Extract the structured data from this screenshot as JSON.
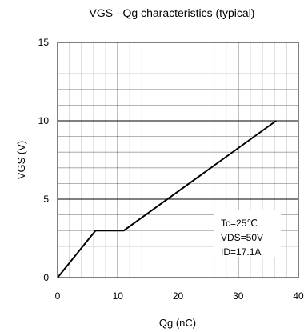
{
  "chart_data": {
    "type": "line",
    "title": "VGS - Qg characteristics (typical)",
    "xlabel": "Qg (nC)",
    "ylabel": "VGS (V)",
    "xlim": [
      0,
      40
    ],
    "ylim": [
      0,
      15
    ],
    "x_ticks": [
      0,
      10,
      20,
      30,
      40
    ],
    "y_ticks": [
      0,
      5,
      10,
      15
    ],
    "x_tick_labels": [
      "0",
      "10",
      "20",
      "30",
      "40"
    ],
    "y_tick_labels": [
      "0",
      "5",
      "10",
      "15"
    ],
    "grid": true,
    "series": [
      {
        "x": [
          0,
          6.3,
          11.0,
          36.3
        ],
        "y": [
          0,
          3.0,
          3.0,
          10.0
        ],
        "color": "#000000"
      }
    ],
    "annotations": [
      "Tc=25℃",
      "VDS=50V",
      "ID=17.1A"
    ]
  }
}
